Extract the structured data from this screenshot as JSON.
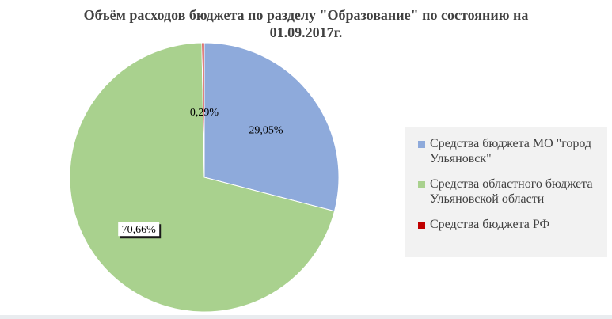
{
  "chart_data": {
    "type": "pie",
    "title": "Объём расходов бюджета по разделу \"Образование\" по состоянию на",
    "title_line2": "01.09.2017г.",
    "slices": [
      {
        "label": "Средства бюджета МО \"город Ульяновск\"",
        "value": 29.05,
        "data_label": "29,05%",
        "color": "#8eaadb"
      },
      {
        "label": "Средства областного бюджета Ульяновской области",
        "value": 70.66,
        "data_label": "70,66%",
        "color": "#a9d18e"
      },
      {
        "label": "Средства бюджета РФ",
        "value": 0.29,
        "data_label": "0,29%",
        "color": "#c00000"
      }
    ],
    "legend_position": "right",
    "start_angle": "12 o'clock",
    "direction": "clockwise"
  }
}
